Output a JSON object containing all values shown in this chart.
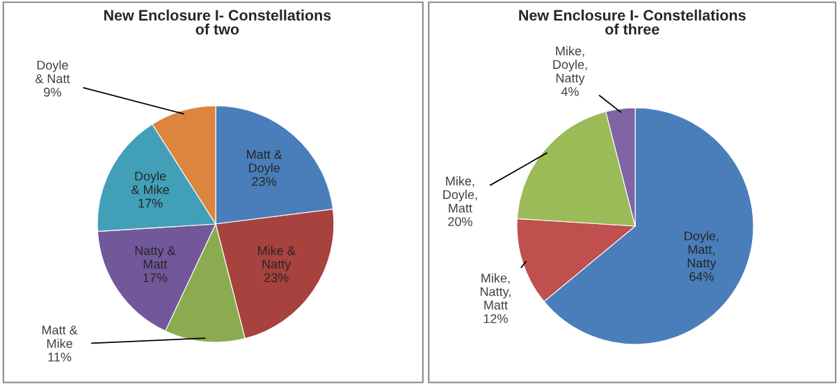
{
  "chart_data": [
    {
      "type": "pie",
      "title": "New Enclosure I- Constellations of two",
      "categories": [
        "Matt &\nDoyle",
        "Mike &\nNatty",
        "Matt &\nMike",
        "Natty &\nMatt",
        "Doyle\n& Mike",
        "Doyle\n& Natt"
      ],
      "values": [
        23,
        23,
        11,
        17,
        17,
        9
      ],
      "value_labels": [
        "23%",
        "23%",
        "11%",
        "17%",
        "17%",
        "9%"
      ],
      "colors": [
        "#4a7ebb",
        "#a8423f",
        "#8aab4f",
        "#72589a",
        "#41a0b8",
        "#dc853f"
      ],
      "legend": false
    },
    {
      "type": "pie",
      "title": "New Enclosure I- Constellations of three",
      "categories": [
        "Doyle,\nMatt,\nNatty",
        "Mike,\nNatty,\nMatt",
        "Mike,\nDoyle,\nMatt",
        "Mike,\nDoyle,\nNatty"
      ],
      "values": [
        64,
        12,
        20,
        4
      ],
      "value_labels": [
        "64%",
        "12%",
        "20%",
        "4%"
      ],
      "colors": [
        "#4a7ebb",
        "#c0504d",
        "#9bbb59",
        "#8064a2"
      ],
      "legend": false
    }
  ]
}
